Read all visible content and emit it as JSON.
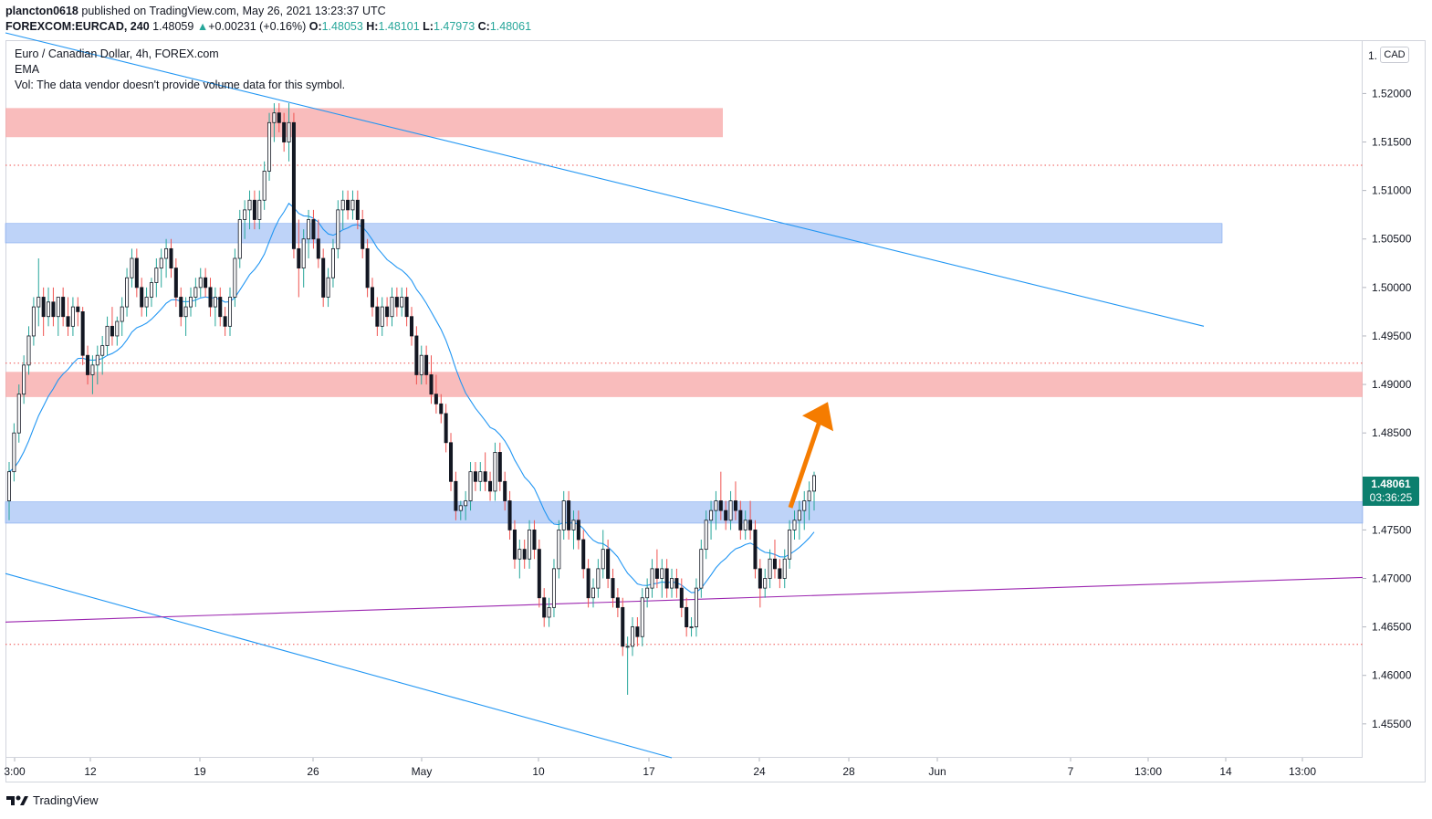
{
  "header": {
    "publisher": "plancton0618",
    "published_text": " published on TradingView.com, May 26, 2021 13:23:37 UTC",
    "symbol": "FOREXCOM:EURCAD, 240",
    "last": "1.48059",
    "change": "+0.00231 (+0.16%)",
    "open_label": "O:",
    "open": "1.48053",
    "high_label": "H:",
    "high": "1.48101",
    "low_label": "L:",
    "low": "1.47973",
    "close_label": "C:",
    "close": "1.48061"
  },
  "legend": {
    "title": "Euro / Canadian Dollar, 4h, FOREX.com",
    "indicator": "EMA",
    "volume_note": "Vol: The data vendor doesn't provide volume data for this symbol."
  },
  "axis": {
    "currency": "CAD",
    "top_partial": "1.",
    "last_price": "1.48061",
    "countdown": "03:36:25"
  },
  "footer": {
    "brand": "TradingView"
  },
  "colors": {
    "up": "#26a69a",
    "down": "#ef5350",
    "candle": "#131722",
    "resistance_zone": "#f7a5a5",
    "support_zone": "#a8c4f5",
    "trendline": "#2196f3",
    "purple_line": "#9c27b0",
    "arrow": "#f57c00",
    "tag_bg": "#0c7f6e"
  },
  "chart_data": {
    "type": "candlestick",
    "title": "Euro / Canadian Dollar, 4h, FOREX.com",
    "xlabel": "",
    "ylabel": "",
    "ylim": [
      1.4515,
      1.5255
    ],
    "x_ticks": [
      "3:00",
      "12",
      "19",
      "26",
      "May",
      "10",
      "17",
      "24",
      "28",
      "Jun",
      "7",
      "13:00",
      "14",
      "13:00"
    ],
    "y_ticks": [
      "1.52000",
      "1.51500",
      "1.51000",
      "1.50500",
      "1.50000",
      "1.49500",
      "1.49000",
      "1.48500",
      "1.48000",
      "1.47500",
      "1.47000",
      "1.46500",
      "1.46000",
      "1.45500"
    ],
    "grid": false,
    "zones": [
      {
        "kind": "resistance",
        "y_range": [
          1.5155,
          1.5185
        ],
        "end": "Apr 29"
      },
      {
        "kind": "support",
        "y_range": [
          1.5046,
          1.5066
        ],
        "end": "Jun 14"
      },
      {
        "kind": "resistance",
        "y_range": [
          1.4887,
          1.4913
        ],
        "end": "right edge"
      },
      {
        "kind": "support",
        "y_range": [
          1.4757,
          1.4779
        ],
        "end": "right edge"
      }
    ],
    "dotted_levels": [
      1.5126,
      1.4922,
      1.4632
    ],
    "trend_lines": [
      {
        "color": "blue",
        "from": [
          0,
          1.5255
        ],
        "to": [
          "Jun 13",
          1.496
        ]
      },
      {
        "color": "blue",
        "from": [
          0,
          1.4705
        ],
        "to": [
          "May 18",
          1.4515
        ]
      },
      {
        "color": "purple",
        "from": [
          0,
          1.4655
        ],
        "to": [
          "right edge",
          1.4701
        ]
      }
    ],
    "arrow": {
      "direction": "up",
      "from": 1.4773,
      "to": 1.488
    },
    "candles": [
      [
        1.478,
        1.482,
        1.476,
        1.481
      ],
      [
        1.481,
        1.486,
        1.48,
        1.485
      ],
      [
        1.485,
        1.49,
        1.484,
        1.489
      ],
      [
        1.489,
        1.493,
        1.488,
        1.492
      ],
      [
        1.492,
        1.496,
        1.491,
        1.495
      ],
      [
        1.495,
        1.499,
        1.494,
        1.498
      ],
      [
        1.498,
        1.503,
        1.496,
        1.499
      ],
      [
        1.499,
        1.5,
        1.495,
        1.497
      ],
      [
        1.497,
        1.5,
        1.496,
        1.4985
      ],
      [
        1.4985,
        1.5,
        1.496,
        1.497
      ],
      [
        1.497,
        1.499,
        1.495,
        1.499
      ],
      [
        1.499,
        1.5,
        1.496,
        1.497
      ],
      [
        1.497,
        1.499,
        1.495,
        1.496
      ],
      [
        1.496,
        1.499,
        1.495,
        1.498
      ],
      [
        1.498,
        1.499,
        1.496,
        1.4975
      ],
      [
        1.4975,
        1.498,
        1.492,
        1.493
      ],
      [
        1.493,
        1.494,
        1.49,
        1.491
      ],
      [
        1.491,
        1.493,
        1.489,
        1.492
      ],
      [
        1.492,
        1.494,
        1.49,
        1.493
      ],
      [
        1.493,
        1.495,
        1.491,
        1.494
      ],
      [
        1.494,
        1.497,
        1.493,
        1.496
      ],
      [
        1.496,
        1.498,
        1.494,
        1.495
      ],
      [
        1.495,
        1.497,
        1.494,
        1.4965
      ],
      [
        1.4965,
        1.499,
        1.495,
        1.498
      ],
      [
        1.498,
        1.502,
        1.497,
        1.501
      ],
      [
        1.501,
        1.504,
        1.5,
        1.503
      ],
      [
        1.503,
        1.504,
        1.499,
        1.5
      ],
      [
        1.5,
        1.501,
        1.497,
        1.498
      ],
      [
        1.498,
        1.5,
        1.497,
        1.499
      ],
      [
        1.499,
        1.501,
        1.498,
        1.5005
      ],
      [
        1.5005,
        1.503,
        1.499,
        1.502
      ],
      [
        1.502,
        1.504,
        1.5,
        1.503
      ],
      [
        1.503,
        1.505,
        1.501,
        1.504
      ],
      [
        1.504,
        1.505,
        1.501,
        1.502
      ],
      [
        1.502,
        1.503,
        1.498,
        1.499
      ],
      [
        1.499,
        1.5,
        1.496,
        1.497
      ],
      [
        1.497,
        1.499,
        1.495,
        1.498
      ],
      [
        1.498,
        1.5,
        1.497,
        1.499
      ],
      [
        1.499,
        1.501,
        1.498,
        1.5
      ],
      [
        1.5,
        1.502,
        1.499,
        1.501
      ],
      [
        1.501,
        1.502,
        1.499,
        1.5
      ],
      [
        1.5,
        1.501,
        1.497,
        1.498
      ],
      [
        1.498,
        1.5,
        1.496,
        1.499
      ],
      [
        1.499,
        1.5,
        1.496,
        1.497
      ],
      [
        1.497,
        1.498,
        1.495,
        1.496
      ],
      [
        1.496,
        1.5,
        1.495,
        1.499
      ],
      [
        1.499,
        1.504,
        1.498,
        1.503
      ],
      [
        1.503,
        1.508,
        1.502,
        1.507
      ],
      [
        1.507,
        1.509,
        1.505,
        1.508
      ],
      [
        1.508,
        1.51,
        1.506,
        1.509
      ],
      [
        1.509,
        1.51,
        1.506,
        1.507
      ],
      [
        1.507,
        1.51,
        1.506,
        1.509
      ],
      [
        1.509,
        1.513,
        1.508,
        1.512
      ],
      [
        1.512,
        1.518,
        1.511,
        1.517
      ],
      [
        1.517,
        1.519,
        1.515,
        1.518
      ],
      [
        1.518,
        1.519,
        1.516,
        1.517
      ],
      [
        1.517,
        1.518,
        1.514,
        1.515
      ],
      [
        1.515,
        1.519,
        1.513,
        1.517
      ],
      [
        1.517,
        1.518,
        1.503,
        1.504
      ],
      [
        1.504,
        1.507,
        1.499,
        1.502
      ],
      [
        1.502,
        1.506,
        1.5,
        1.505
      ],
      [
        1.505,
        1.508,
        1.503,
        1.507
      ],
      [
        1.507,
        1.508,
        1.504,
        1.505
      ],
      [
        1.505,
        1.507,
        1.502,
        1.503
      ],
      [
        1.503,
        1.504,
        1.498,
        1.499
      ],
      [
        1.499,
        1.502,
        1.498,
        1.501
      ],
      [
        1.501,
        1.505,
        1.5,
        1.504
      ],
      [
        1.504,
        1.509,
        1.503,
        1.508
      ],
      [
        1.508,
        1.51,
        1.506,
        1.509
      ],
      [
        1.509,
        1.51,
        1.507,
        1.508
      ],
      [
        1.508,
        1.51,
        1.507,
        1.509
      ],
      [
        1.509,
        1.51,
        1.506,
        1.507
      ],
      [
        1.507,
        1.508,
        1.503,
        1.504
      ],
      [
        1.504,
        1.505,
        1.499,
        1.5
      ],
      [
        1.5,
        1.501,
        1.497,
        1.498
      ],
      [
        1.498,
        1.499,
        1.495,
        1.496
      ],
      [
        1.496,
        1.499,
        1.495,
        1.498
      ],
      [
        1.498,
        1.499,
        1.496,
        1.497
      ],
      [
        1.497,
        1.5,
        1.496,
        1.499
      ],
      [
        1.499,
        1.5,
        1.497,
        1.498
      ],
      [
        1.498,
        1.5,
        1.497,
        1.499
      ],
      [
        1.499,
        1.5,
        1.496,
        1.497
      ],
      [
        1.497,
        1.498,
        1.494,
        1.495
      ],
      [
        1.495,
        1.496,
        1.49,
        1.491
      ],
      [
        1.491,
        1.494,
        1.49,
        1.493
      ],
      [
        1.493,
        1.494,
        1.49,
        1.491
      ],
      [
        1.491,
        1.493,
        1.488,
        1.489
      ],
      [
        1.489,
        1.491,
        1.487,
        1.488
      ],
      [
        1.488,
        1.489,
        1.486,
        1.487
      ],
      [
        1.487,
        1.488,
        1.483,
        1.484
      ],
      [
        1.484,
        1.485,
        1.479,
        1.48
      ],
      [
        1.48,
        1.481,
        1.476,
        1.477
      ],
      [
        1.477,
        1.478,
        1.476,
        1.4775
      ],
      [
        1.4775,
        1.479,
        1.476,
        1.478
      ],
      [
        1.478,
        1.482,
        1.477,
        1.481
      ],
      [
        1.481,
        1.482,
        1.479,
        1.48
      ],
      [
        1.48,
        1.482,
        1.479,
        1.481
      ],
      [
        1.481,
        1.483,
        1.479,
        1.48
      ],
      [
        1.48,
        1.481,
        1.478,
        1.479
      ],
      [
        1.479,
        1.484,
        1.478,
        1.483
      ],
      [
        1.483,
        1.484,
        1.479,
        1.48
      ],
      [
        1.48,
        1.481,
        1.477,
        1.478
      ],
      [
        1.478,
        1.479,
        1.474,
        1.475
      ],
      [
        1.475,
        1.476,
        1.471,
        1.472
      ],
      [
        1.472,
        1.474,
        1.47,
        1.473
      ],
      [
        1.473,
        1.474,
        1.471,
        1.472
      ],
      [
        1.472,
        1.476,
        1.471,
        1.475
      ],
      [
        1.475,
        1.476,
        1.472,
        1.473
      ],
      [
        1.473,
        1.474,
        1.467,
        1.468
      ],
      [
        1.468,
        1.469,
        1.465,
        1.466
      ],
      [
        1.466,
        1.468,
        1.465,
        1.467
      ],
      [
        1.467,
        1.472,
        1.466,
        1.471
      ],
      [
        1.471,
        1.476,
        1.47,
        1.475
      ],
      [
        1.475,
        1.479,
        1.474,
        1.478
      ],
      [
        1.478,
        1.479,
        1.474,
        1.475
      ],
      [
        1.475,
        1.477,
        1.473,
        1.476
      ],
      [
        1.476,
        1.477,
        1.473,
        1.474
      ],
      [
        1.474,
        1.475,
        1.47,
        1.471
      ],
      [
        1.471,
        1.472,
        1.467,
        1.468
      ],
      [
        1.468,
        1.47,
        1.467,
        1.469
      ],
      [
        1.469,
        1.472,
        1.468,
        1.471
      ],
      [
        1.471,
        1.475,
        1.47,
        1.473
      ],
      [
        1.473,
        1.474,
        1.469,
        1.47
      ],
      [
        1.47,
        1.471,
        1.467,
        1.468
      ],
      [
        1.468,
        1.469,
        1.466,
        1.467
      ],
      [
        1.467,
        1.468,
        1.462,
        1.463
      ],
      [
        1.463,
        1.464,
        1.458,
        1.463
      ],
      [
        1.463,
        1.466,
        1.462,
        1.465
      ],
      [
        1.465,
        1.466,
        1.463,
        1.464
      ],
      [
        1.464,
        1.469,
        1.463,
        1.468
      ],
      [
        1.468,
        1.47,
        1.467,
        1.469
      ],
      [
        1.469,
        1.472,
        1.468,
        1.471
      ],
      [
        1.471,
        1.473,
        1.469,
        1.47
      ],
      [
        1.47,
        1.472,
        1.468,
        1.471
      ],
      [
        1.471,
        1.472,
        1.468,
        1.469
      ],
      [
        1.469,
        1.471,
        1.468,
        1.47
      ],
      [
        1.47,
        1.471,
        1.468,
        1.469
      ],
      [
        1.469,
        1.47,
        1.466,
        1.467
      ],
      [
        1.467,
        1.468,
        1.464,
        1.465
      ],
      [
        1.465,
        1.466,
        1.464,
        1.465
      ],
      [
        1.465,
        1.47,
        1.464,
        1.469
      ],
      [
        1.469,
        1.474,
        1.468,
        1.473
      ],
      [
        1.473,
        1.477,
        1.472,
        1.476
      ],
      [
        1.476,
        1.478,
        1.474,
        1.477
      ],
      [
        1.477,
        1.479,
        1.475,
        1.478
      ],
      [
        1.478,
        1.481,
        1.476,
        1.477
      ],
      [
        1.477,
        1.478,
        1.475,
        1.476
      ],
      [
        1.476,
        1.479,
        1.475,
        1.478
      ],
      [
        1.478,
        1.48,
        1.476,
        1.477
      ],
      [
        1.477,
        1.478,
        1.474,
        1.475
      ],
      [
        1.475,
        1.477,
        1.474,
        1.476
      ],
      [
        1.476,
        1.478,
        1.474,
        1.475
      ],
      [
        1.475,
        1.476,
        1.47,
        1.471
      ],
      [
        1.471,
        1.472,
        1.467,
        1.469
      ],
      [
        1.469,
        1.471,
        1.468,
        1.47
      ],
      [
        1.47,
        1.473,
        1.469,
        1.472
      ],
      [
        1.472,
        1.474,
        1.47,
        1.471
      ],
      [
        1.471,
        1.472,
        1.469,
        1.47
      ],
      [
        1.47,
        1.473,
        1.469,
        1.472
      ],
      [
        1.472,
        1.476,
        1.471,
        1.475
      ],
      [
        1.475,
        1.477,
        1.474,
        1.476
      ],
      [
        1.476,
        1.478,
        1.474,
        1.477
      ],
      [
        1.477,
        1.479,
        1.475,
        1.478
      ],
      [
        1.478,
        1.48,
        1.476,
        1.479
      ],
      [
        1.479,
        1.481,
        1.477,
        1.4806
      ]
    ]
  }
}
